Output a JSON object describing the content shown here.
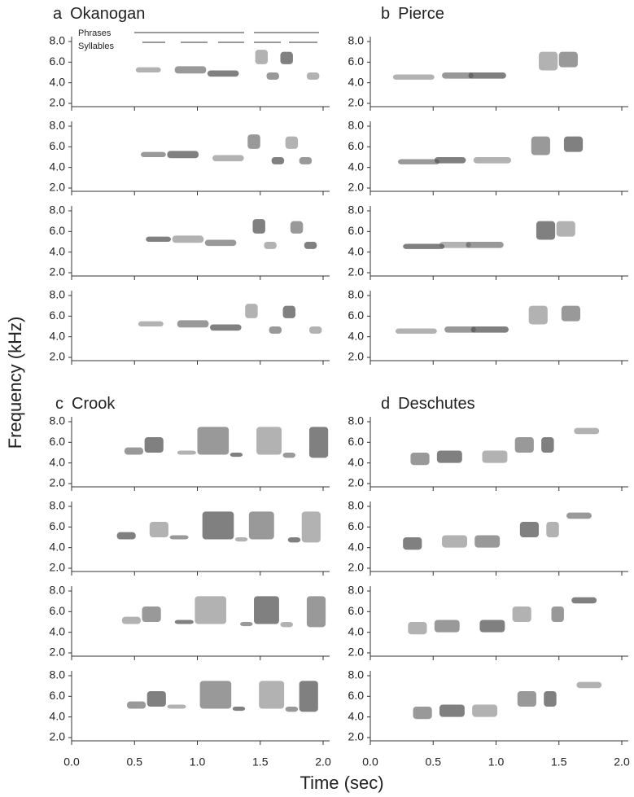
{
  "figure": {
    "y_label": "Frequency (kHz)",
    "x_label": "Time (sec)",
    "ylim": [
      2,
      8
    ],
    "yticks": [
      {
        "value": 2,
        "label": "2.0"
      },
      {
        "value": 4,
        "label": "4.0"
      },
      {
        "value": 6,
        "label": "6.0"
      },
      {
        "value": 8,
        "label": "8.0"
      }
    ],
    "xlim": [
      0,
      2
    ],
    "xticks": [
      {
        "value": 0,
        "label": "0.0"
      },
      {
        "value": 0.5,
        "label": "0.5"
      },
      {
        "value": 1,
        "label": "1.0"
      },
      {
        "value": 1.5,
        "label": "1.5"
      },
      {
        "value": 2,
        "label": "2.0"
      }
    ],
    "panels": [
      {
        "label": "a",
        "title": "Okanogan"
      },
      {
        "label": "b",
        "title": "Pierce"
      },
      {
        "label": "c",
        "title": "Crook"
      },
      {
        "label": "d",
        "title": "Deschutes"
      }
    ],
    "annotations": [
      "Phrases",
      "Syllables"
    ]
  }
}
